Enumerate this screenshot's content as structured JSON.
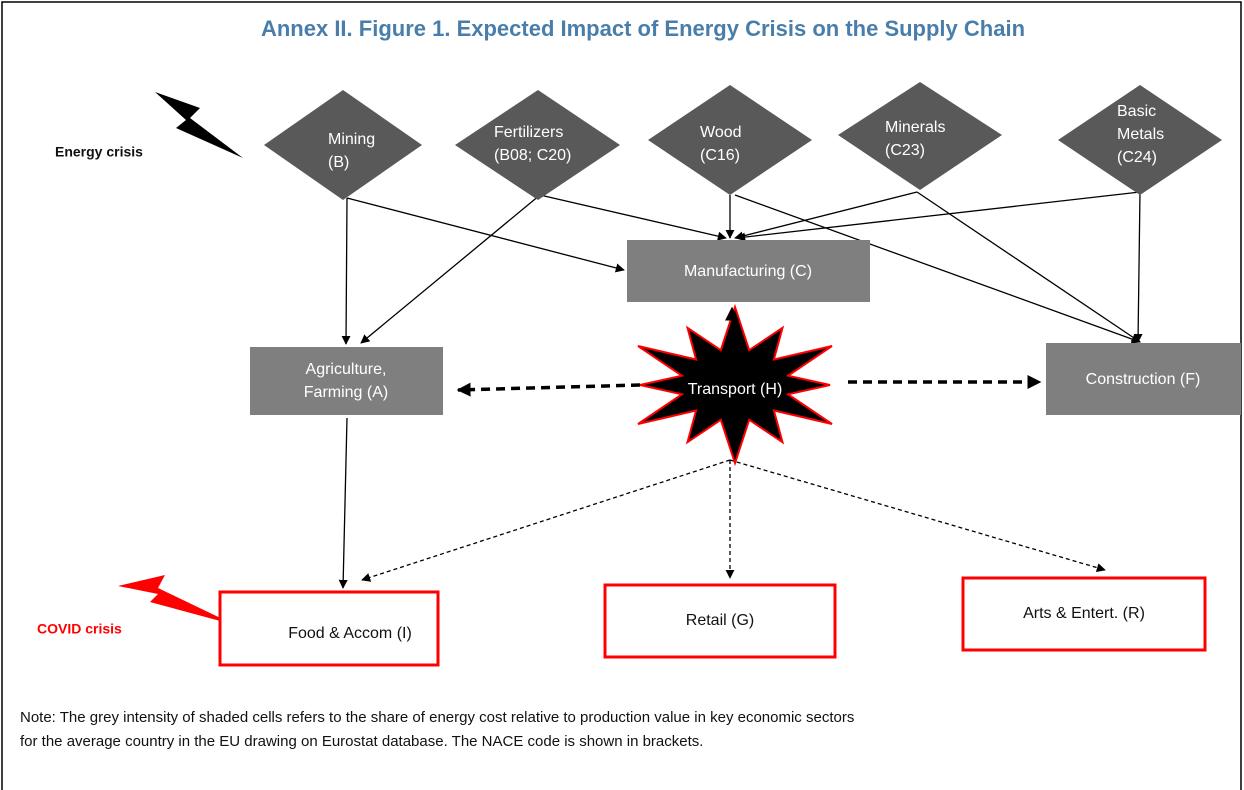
{
  "title": "Annex II. Figure 1. Expected Impact of Energy Crisis on the Supply Chain",
  "crises": [
    {
      "label": "Energy crisis"
    },
    {
      "label": "COVID crisis"
    }
  ],
  "nodes": [
    {
      "label": [
        "Mining",
        "(B)"
      ]
    },
    {
      "label": [
        "Fertilizers",
        "(B08; C20)"
      ]
    },
    {
      "label": [
        "Wood",
        "(C16)"
      ]
    },
    {
      "label": [
        "Minerals",
        "(C23)"
      ]
    },
    {
      "label": [
        "Basic",
        "Metals",
        "(C24)"
      ]
    },
    {
      "label": [
        "Manufacturing (C)"
      ]
    },
    {
      "label": [
        "Agriculture,",
        "Farming (A)"
      ]
    },
    {
      "label": [
        "Transport (H)"
      ]
    },
    {
      "label": [
        "Construction (F)"
      ]
    },
    {
      "label": [
        "Food & Accom (I)"
      ]
    },
    {
      "label": [
        "Retail (G)"
      ]
    },
    {
      "label": [
        "Arts & Entert. (R)"
      ]
    }
  ],
  "note": [
    "Note: The grey intensity of shaded cells refers to the share of energy cost relative to production value in key economic sectors",
    "for the average country in the EU drawing on Eurostat database. The NACE code is shown in brackets."
  ]
}
